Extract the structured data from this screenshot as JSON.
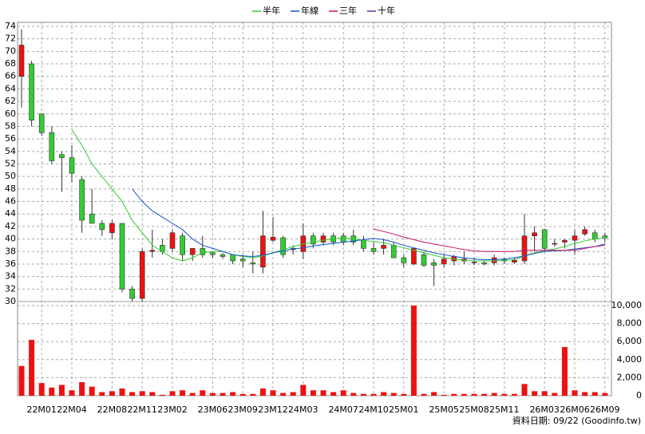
{
  "chart_data": {
    "type": "candlestick",
    "categories": [
      null,
      null,
      "22M01",
      null,
      null,
      "22M04",
      null,
      null,
      null,
      "22M08",
      null,
      null,
      "22M11",
      null,
      null,
      "23M02",
      null,
      null,
      null,
      "23M06",
      null,
      null,
      "23M09",
      null,
      null,
      "23M12",
      null,
      null,
      "24M03",
      null,
      null,
      null,
      "24M07",
      null,
      null,
      "24M10",
      null,
      null,
      "25M01",
      null,
      null,
      null,
      "25M05",
      null,
      null,
      "25M08",
      null,
      null,
      "25M11",
      null,
      null,
      null,
      "26M03",
      null,
      null,
      "26M06",
      null,
      null,
      "26M09"
    ],
    "open": [
      66,
      68,
      60,
      57,
      53.5,
      53,
      49.5,
      44,
      42.5,
      41,
      42.5,
      32,
      30.5,
      38,
      39,
      38.5,
      40.5,
      37.5,
      38.5,
      37.8,
      37.5,
      37.5,
      36.8,
      36.2,
      35.5,
      39.8,
      40.2,
      38.5,
      38,
      40.5,
      39.5,
      40.5,
      40.5,
      40.5,
      39.8,
      38.5,
      38.5,
      39,
      37,
      36,
      37.5,
      36.2,
      36,
      36.5,
      36.5,
      36.3,
      36.2,
      36.2,
      36.7,
      36.3,
      36.5,
      40.5,
      41.5,
      39.3,
      39.5,
      39.8,
      40.8,
      41,
      40.5
    ],
    "high": [
      73.5,
      68.5,
      60,
      58,
      54,
      55,
      50,
      48,
      43,
      43,
      42.5,
      32.5,
      38.5,
      41.5,
      40,
      41.5,
      41,
      38.5,
      40.5,
      38,
      37.8,
      37.5,
      37.5,
      38,
      44.5,
      43.5,
      40.5,
      39,
      42.5,
      41,
      41,
      41,
      41,
      41.5,
      40.5,
      39.5,
      40,
      39.5,
      37.5,
      38.5,
      38,
      36.8,
      37.5,
      37.5,
      38,
      37,
      36.5,
      37.5,
      37,
      37,
      44,
      42,
      41.5,
      40,
      40,
      41.5,
      42,
      41.5,
      41
    ],
    "low": [
      61,
      58,
      56.5,
      52,
      47.5,
      49,
      41,
      42.5,
      40.5,
      40,
      31.5,
      30,
      30,
      37,
      37.5,
      38,
      36.5,
      36.5,
      37,
      37,
      36.8,
      36,
      35.5,
      34.5,
      34.5,
      39.5,
      37,
      37.5,
      36.8,
      38.5,
      39,
      39,
      39,
      39,
      38,
      37.5,
      37.5,
      37,
      35.5,
      35.8,
      35.5,
      32.5,
      35.5,
      35.8,
      36,
      35.8,
      35.8,
      35.8,
      36,
      36,
      36,
      38,
      38,
      38.8,
      38.5,
      37.5,
      40.5,
      39.5,
      39.5
    ],
    "close": [
      71,
      59,
      57,
      52.5,
      53,
      50.5,
      43,
      42.5,
      41.5,
      42.5,
      32,
      30.5,
      38,
      38.2,
      38,
      41,
      37.5,
      38.5,
      37.5,
      37.5,
      37.2,
      36.5,
      36.5,
      36,
      40.5,
      40.3,
      37.5,
      38.3,
      40.5,
      39.2,
      40.5,
      39.5,
      39.5,
      39.5,
      38.5,
      38,
      39,
      37,
      36.2,
      38.5,
      35.8,
      35.8,
      36.8,
      37.2,
      36.8,
      36.3,
      36,
      37,
      36.5,
      36.6,
      40.5,
      41,
      38.5,
      39.3,
      39.8,
      40.5,
      41.5,
      40,
      40.2
    ],
    "volume": [
      3300,
      6200,
      1400,
      900,
      1200,
      600,
      1500,
      1000,
      400,
      500,
      800,
      400,
      500,
      400,
      100,
      500,
      600,
      300,
      600,
      300,
      300,
      400,
      200,
      200,
      800,
      600,
      300,
      400,
      1200,
      600,
      600,
      400,
      600,
      300,
      200,
      200,
      400,
      300,
      200,
      10000,
      200,
      400,
      100,
      200,
      200,
      200,
      200,
      300,
      200,
      200,
      1300,
      500,
      500,
      300,
      5400,
      600,
      400,
      400,
      300
    ],
    "up_color": "#ee1111",
    "down_color": "#33cc33",
    "volume_color": "#ee1111",
    "series": [
      {
        "name": "半年",
        "color": "#33cc33",
        "values": [
          null,
          null,
          null,
          null,
          null,
          57.5,
          55,
          52,
          50,
          48,
          46,
          43,
          41,
          39,
          38,
          37,
          36.5,
          37,
          37.8,
          38,
          38,
          37.5,
          37.2,
          37,
          37.3,
          37.8,
          38.3,
          38.8,
          39.2,
          39.5,
          39.8,
          40,
          40.2,
          40,
          39.8,
          39.6,
          39.4,
          39,
          38.6,
          38.2,
          37.8,
          37.4,
          37,
          36.8,
          36.6,
          36.5,
          36.5,
          36.5,
          36.6,
          36.7,
          37.3,
          37.8,
          38.2,
          38.4,
          38.8,
          39.3,
          39.7,
          40,
          40.2
        ]
      },
      {
        "name": "年線",
        "color": "#1155cc",
        "values": [
          null,
          null,
          null,
          null,
          null,
          null,
          null,
          null,
          null,
          null,
          null,
          48,
          46,
          44.5,
          43.5,
          42.5,
          41.5,
          40,
          39,
          38.5,
          38,
          37.5,
          37.3,
          37.2,
          37.4,
          37.8,
          38.1,
          38.4,
          38.6,
          38.9,
          39.1,
          39.3,
          39.5,
          39.7,
          39.9,
          40.1,
          39.9,
          39.5,
          39,
          38.6,
          38.2,
          37.8,
          37.5,
          37.2,
          37,
          36.8,
          36.7,
          36.7,
          36.8,
          37,
          37.3,
          37.7,
          38,
          38.1,
          38.2,
          38.4,
          38.6,
          38.8,
          39.2
        ]
      },
      {
        "name": "三年",
        "color": "#cc1166",
        "values": [
          null,
          null,
          null,
          null,
          null,
          null,
          null,
          null,
          null,
          null,
          null,
          null,
          null,
          null,
          null,
          null,
          null,
          null,
          null,
          null,
          null,
          null,
          null,
          null,
          null,
          null,
          null,
          null,
          null,
          null,
          null,
          null,
          null,
          null,
          null,
          41.6,
          41.2,
          40.8,
          40.3,
          39.9,
          39.5,
          39.2,
          38.9,
          38.6,
          38.3,
          38.1,
          38,
          38,
          38,
          38,
          38.2,
          38.2,
          38.2,
          38.2,
          38.2,
          38.2,
          38.5,
          38.8,
          39
        ]
      },
      {
        "name": "十年",
        "color": "#663399",
        "values": [
          null,
          null,
          null,
          null,
          null,
          null,
          null,
          null,
          null,
          null,
          null,
          null,
          null,
          null,
          null,
          null,
          null,
          null,
          null,
          null,
          null,
          null,
          null,
          null,
          null,
          null,
          null,
          null,
          null,
          null,
          null,
          null,
          null,
          null,
          null,
          null,
          null,
          null,
          null,
          null,
          null,
          null,
          null,
          null,
          null,
          null,
          null,
          null,
          null,
          null,
          null,
          null,
          null,
          null,
          null,
          null,
          null,
          null,
          null
        ]
      }
    ],
    "ylim": [
      30,
      74
    ],
    "yticks": [
      30,
      32,
      34,
      36,
      38,
      40,
      42,
      44,
      46,
      48,
      50,
      52,
      54,
      56,
      58,
      60,
      62,
      64,
      66,
      68,
      70,
      72,
      74
    ],
    "y2lim": [
      0,
      10000
    ],
    "y2ticks": [
      0,
      {
        "value": 2000,
        "label": "2,000"
      },
      {
        "value": 4000,
        "label": "4,000"
      },
      {
        "value": 6000,
        "label": "6,000"
      },
      {
        "value": 8000,
        "label": "8,000"
      },
      {
        "value": 10000,
        "label": "10,000"
      }
    ],
    "grid": true,
    "footnote": "資料日期: 09/22 (Goodinfo.tw)"
  }
}
